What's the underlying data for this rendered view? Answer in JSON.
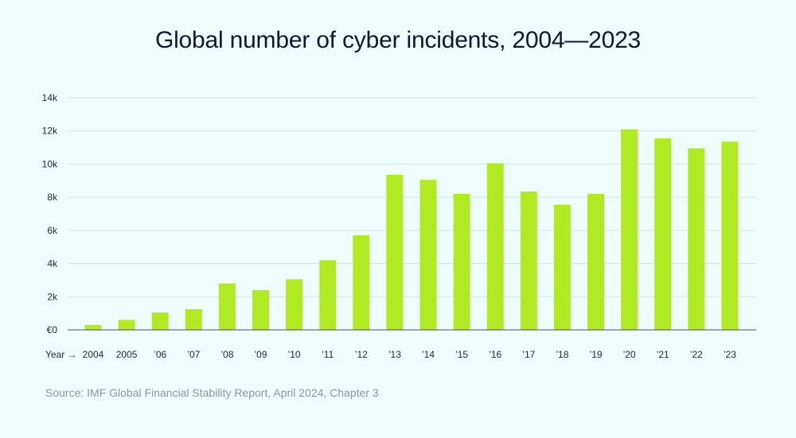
{
  "chart_data": {
    "type": "bar",
    "title": "Global number of cyber incidents, 2004—2023",
    "xlabel": "Year →",
    "ylabel": "",
    "categories": [
      "2004",
      "2005",
      "’06",
      "’07",
      "’08",
      "’09",
      "’10",
      "’11",
      "’12",
      "’13",
      "’14",
      "’15",
      "’16",
      "’17",
      "’18",
      "’19",
      "’20",
      "’21",
      "’22",
      "’23"
    ],
    "values": [
      300,
      600,
      1050,
      1250,
      2800,
      2400,
      3050,
      4200,
      5700,
      9350,
      9050,
      8200,
      10050,
      8350,
      7550,
      8200,
      12100,
      11550,
      10950,
      11350
    ],
    "ylim": [
      0,
      14000
    ],
    "yticks": [
      0,
      2000,
      4000,
      6000,
      8000,
      10000,
      12000,
      14000
    ],
    "ytick_labels": [
      "€0",
      "2k",
      "4k",
      "6k",
      "8k",
      "10k",
      "12k",
      "14k"
    ],
    "grid": true,
    "bar_color": "#b0ea23",
    "source": "Source: IMF Global Financial Stability Report, April 2024, Chapter 3"
  }
}
